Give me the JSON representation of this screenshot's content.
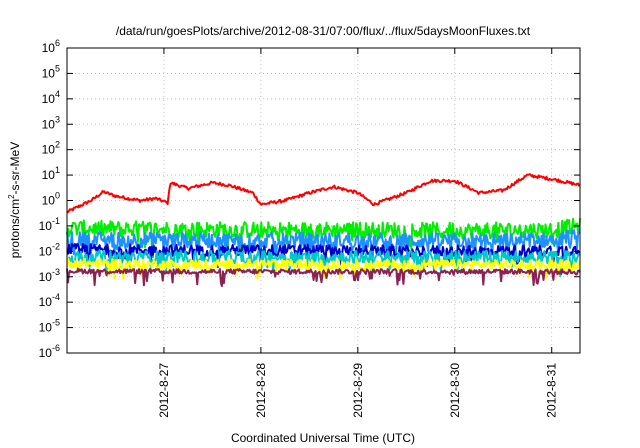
{
  "chart_data": {
    "type": "line",
    "title": "/data/run/goesPlots/archive/2012-08-31/07:00/flux/../flux/5daysMoonFluxes.txt",
    "xlabel": "Coordinated Universal Time (UTC)",
    "ylabel": {
      "base": "protons/cm",
      "sup": "2",
      "rest": "-s-sr-MeV"
    },
    "x_range": [
      "2012-08-26T00:00",
      "2012-08-31T07:00"
    ],
    "x_ticks": [
      "2012-8-27",
      "2012-8-28",
      "2012-8-29",
      "2012-8-30",
      "2012-8-31"
    ],
    "y_scale": "log",
    "y_range": [
      1e-06,
      1000000.0
    ],
    "y_ticks": [
      {
        "base": "10",
        "exp": "-6"
      },
      {
        "base": "10",
        "exp": "-5"
      },
      {
        "base": "10",
        "exp": "-4"
      },
      {
        "base": "10",
        "exp": "-3"
      },
      {
        "base": "10",
        "exp": "-2"
      },
      {
        "base": "10",
        "exp": "-1"
      },
      {
        "base": "10",
        "exp": "0"
      },
      {
        "base": "10",
        "exp": "1"
      },
      {
        "base": "10",
        "exp": "2"
      },
      {
        "base": "10",
        "exp": "3"
      },
      {
        "base": "10",
        "exp": "4"
      },
      {
        "base": "10",
        "exp": "5"
      },
      {
        "base": "10",
        "exp": "6"
      }
    ],
    "grid": true,
    "series": [
      {
        "color": "#ff0000",
        "noise": 0.06,
        "x": [
          "2012-08-26T00:00",
          "2012-08-26T06:00",
          "2012-08-26T09:00",
          "2012-08-26T12:00",
          "2012-08-26T18:00",
          "2012-08-26T22:00",
          "2012-08-27T01:00",
          "2012-08-27T01:30",
          "2012-08-27T06:00",
          "2012-08-27T12:00",
          "2012-08-27T16:00",
          "2012-08-27T22:00",
          "2012-08-28T00:00",
          "2012-08-28T06:00",
          "2012-08-28T12:00",
          "2012-08-28T18:00",
          "2012-08-29T00:00",
          "2012-08-29T04:00",
          "2012-08-29T12:00",
          "2012-08-29T18:00",
          "2012-08-30T00:00",
          "2012-08-30T06:00",
          "2012-08-30T12:00",
          "2012-08-30T18:00",
          "2012-08-31T00:00",
          "2012-08-31T07:00"
        ],
        "y": [
          0.35,
          1.0,
          2.2,
          1.5,
          1.0,
          1.2,
          0.8,
          5.0,
          3.0,
          5.0,
          4.0,
          2.0,
          0.7,
          1.0,
          2.0,
          3.5,
          2.0,
          0.7,
          2.0,
          6.0,
          6.0,
          2.0,
          2.5,
          10.0,
          7.0,
          4.0
        ]
      },
      {
        "color": "#00ee00",
        "noise": 0.32,
        "spike": 0.1,
        "x": [
          "2012-08-26T00:00",
          "2012-08-27T00:00",
          "2012-08-28T00:00",
          "2012-08-29T00:00",
          "2012-08-30T00:00",
          "2012-08-31T00:00",
          "2012-08-31T07:00"
        ],
        "y": [
          0.08,
          0.075,
          0.07,
          0.07,
          0.065,
          0.07,
          0.1
        ]
      },
      {
        "color": "#1e90ff",
        "noise": 0.3,
        "spike": 0.15,
        "x": [
          "2012-08-26T00:00",
          "2012-08-27T00:00",
          "2012-08-28T00:00",
          "2012-08-29T00:00",
          "2012-08-30T00:00",
          "2012-08-31T00:00",
          "2012-08-31T07:00"
        ],
        "y": [
          0.03,
          0.028,
          0.028,
          0.027,
          0.026,
          0.028,
          0.04
        ]
      },
      {
        "color": "#0000cd",
        "noise": 0.22,
        "spike": 0.12,
        "x": [
          "2012-08-26T00:00",
          "2012-08-27T00:00",
          "2012-08-28T00:00",
          "2012-08-29T00:00",
          "2012-08-30T00:00",
          "2012-08-31T00:00",
          "2012-08-31T07:00"
        ],
        "y": [
          0.012,
          0.011,
          0.011,
          0.011,
          0.01,
          0.011,
          0.012
        ]
      },
      {
        "color": "#00c8c8",
        "noise": 0.25,
        "spike": 0.12,
        "x": [
          "2012-08-26T00:00",
          "2012-08-27T00:00",
          "2012-08-28T00:00",
          "2012-08-29T00:00",
          "2012-08-30T00:00",
          "2012-08-31T00:00",
          "2012-08-31T07:00"
        ],
        "y": [
          0.006,
          0.006,
          0.006,
          0.006,
          0.006,
          0.006,
          0.006
        ]
      },
      {
        "color": "#ffff00",
        "noise": 0.18,
        "spike": 0.08,
        "x": [
          "2012-08-26T00:00",
          "2012-08-27T00:00",
          "2012-08-28T00:00",
          "2012-08-29T00:00",
          "2012-08-30T00:00",
          "2012-08-31T00:00",
          "2012-08-31T07:00"
        ],
        "y": [
          0.0035,
          0.003,
          0.0032,
          0.003,
          0.0031,
          0.003,
          0.0033
        ]
      },
      {
        "color": "#8b2252",
        "noise": 0.1,
        "spike": 0.06,
        "x": [
          "2012-08-26T00:00",
          "2012-08-27T00:00",
          "2012-08-28T00:00",
          "2012-08-29T00:00",
          "2012-08-30T00:00",
          "2012-08-31T00:00",
          "2012-08-31T07:00"
        ],
        "y": [
          0.0017,
          0.0016,
          0.0016,
          0.0016,
          0.0016,
          0.0016,
          0.0015
        ]
      }
    ]
  }
}
